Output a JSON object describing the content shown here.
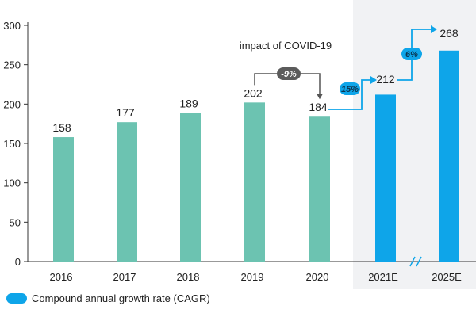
{
  "chart_data": {
    "type": "bar",
    "categories": [
      "2016",
      "2017",
      "2018",
      "2019",
      "2020",
      "2021E",
      "2025E"
    ],
    "values": [
      158,
      177,
      189,
      202,
      184,
      212,
      268
    ],
    "value_labels": [
      "158",
      "177",
      "189",
      "202",
      "184",
      "212",
      "268"
    ],
    "series_kind": [
      "actual",
      "actual",
      "actual",
      "actual",
      "actual",
      "estimate",
      "estimate"
    ],
    "ylim": [
      0,
      300
    ],
    "yticks": [
      0,
      50,
      100,
      150,
      200,
      250,
      300
    ],
    "title": "",
    "xlabel": "",
    "ylabel": "",
    "grid": false,
    "axis_break_between": [
      "2021E",
      "2025E"
    ],
    "annotations": {
      "covid": {
        "text": "impact of COVID-19",
        "change": "-9%",
        "from": "2019",
        "to": "2020"
      },
      "cagr": [
        {
          "label": "15%",
          "from": "2020",
          "to": "2021E"
        },
        {
          "label": "6%",
          "from": "2021E",
          "to": "2025E"
        }
      ]
    }
  },
  "legend": {
    "label": "Compound annual growth rate (CAGR)"
  },
  "colors": {
    "actual": "#6cc3b1",
    "estimate": "#0ea5e9",
    "forecast_bg": "#f1f2f4",
    "covid_pill": "#5b5b5b",
    "axis": "#333333"
  }
}
